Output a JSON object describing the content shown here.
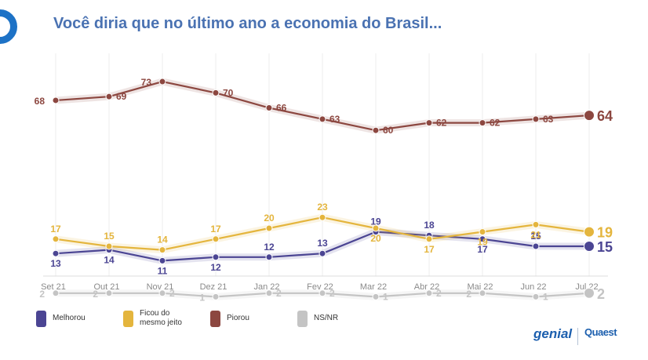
{
  "title": "Você diria que no último ano a economia do Brasil...",
  "legend": [
    {
      "label": "Melhorou",
      "color": "#4b4593"
    },
    {
      "label": "Ficou do mesmo jeito",
      "color": "#e4b53d"
    },
    {
      "label": "Piorou",
      "color": "#8c4740"
    },
    {
      "label": "NS/NR",
      "color": "#c4c4c4"
    }
  ],
  "brands": {
    "genial": "genial",
    "quaest": "Quaest"
  },
  "chart_data": {
    "type": "line",
    "categories": [
      "Set 21",
      "Out 21",
      "Nov 21",
      "Dez 21",
      "Jan 22",
      "Fev 22",
      "Mar 22",
      "Abr 22",
      "Mai 22",
      "Jun 22",
      "Jul 22"
    ],
    "series": [
      {
        "name": "Melhorou",
        "color": "#4b4593",
        "values": [
          13,
          14,
          11,
          12,
          12,
          13,
          19,
          18,
          17,
          15,
          15
        ],
        "labelPos": [
          "below",
          "below",
          "below",
          "below",
          "above",
          "above",
          "above",
          "above",
          "below",
          "above",
          "right"
        ]
      },
      {
        "name": "Ficou do mesmo jeito",
        "color": "#e4b53d",
        "values": [
          17,
          15,
          14,
          17,
          20,
          23,
          20,
          17,
          19,
          21,
          19
        ],
        "labelPos": [
          "above",
          "above",
          "above",
          "above",
          "above",
          "above",
          "below",
          "below",
          "below",
          "below",
          "right"
        ]
      },
      {
        "name": "Piorou",
        "color": "#8c4740",
        "values": [
          68,
          69,
          73,
          70,
          66,
          63,
          60,
          62,
          62,
          63,
          64
        ],
        "labelPos": [
          "left",
          "right",
          "left",
          "right",
          "right",
          "right",
          "right",
          "right",
          "right",
          "right",
          "right"
        ]
      },
      {
        "name": "NS/NR",
        "color": "#c4c4c4",
        "values": [
          2,
          2,
          2,
          1,
          2,
          2,
          1,
          2,
          2,
          1,
          2
        ],
        "labelPos": [
          "left",
          "left",
          "right",
          "left",
          "right",
          "right",
          "right",
          "right",
          "left",
          "right",
          "right"
        ]
      }
    ],
    "ylim": [
      0,
      80
    ],
    "grid": "vertical"
  }
}
